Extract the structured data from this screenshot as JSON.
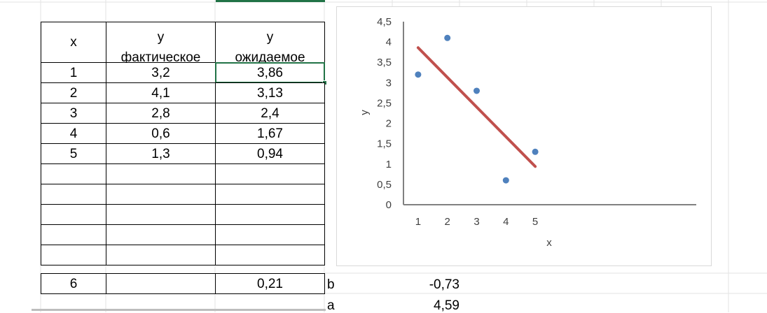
{
  "table": {
    "headers": {
      "x": "x",
      "y_actual": [
        "y",
        "фактическое"
      ],
      "y_expected": [
        "y",
        "ожидаемое"
      ]
    },
    "rows": [
      {
        "x": "1",
        "actual": "3,2",
        "expected": "3,86"
      },
      {
        "x": "2",
        "actual": "4,1",
        "expected": "3,13"
      },
      {
        "x": "3",
        "actual": "2,8",
        "expected": "2,4"
      },
      {
        "x": "4",
        "actual": "0,6",
        "expected": "1,67"
      },
      {
        "x": "5",
        "actual": "1,3",
        "expected": "0,94"
      }
    ],
    "forecast": {
      "x": "6",
      "actual": "",
      "expected": "0,21"
    }
  },
  "coefficients": {
    "b_label": "b",
    "b_value": "-0,73",
    "a_label": "a",
    "a_value": "4,59"
  },
  "colors": {
    "point": "#4f81bd",
    "trendline": "#c0504d",
    "selection": "#217346",
    "axis": "#808080"
  },
  "chart_data": {
    "type": "scatter",
    "title": "",
    "xlabel": "x",
    "ylabel": "y",
    "xlim": [
      0.5,
      10.5
    ],
    "ylim": [
      0,
      4.5
    ],
    "x_ticks": [
      "1",
      "2",
      "3",
      "4",
      "5"
    ],
    "y_ticks": [
      "0",
      "0,5",
      "1",
      "1,5",
      "2",
      "2,5",
      "3",
      "3,5",
      "4",
      "4,5"
    ],
    "grid": false,
    "points": [
      {
        "x": 1,
        "y": 3.2
      },
      {
        "x": 2,
        "y": 4.1
      },
      {
        "x": 3,
        "y": 2.8
      },
      {
        "x": 4,
        "y": 0.6
      },
      {
        "x": 5,
        "y": 1.3
      }
    ],
    "trendline": [
      {
        "x": 1,
        "y": 3.86
      },
      {
        "x": 5,
        "y": 0.94
      }
    ]
  }
}
